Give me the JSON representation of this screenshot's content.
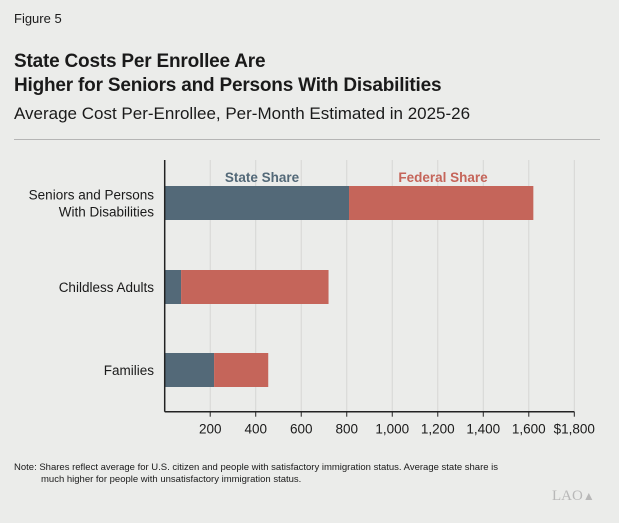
{
  "figure_label": "Figure 5",
  "title_lines": [
    "State Costs Per Enrollee Are",
    "Higher for Seniors and Persons With Disabilities"
  ],
  "subtitle": "Average Cost Per-Enrollee, Per-Month Estimated in 2025-26",
  "note_lines": [
    "Note: Shares reflect average for U.S. citizen and people with satisfactory immigration status. Average state share is",
    "much higher for people with unsatisfactory immigration status."
  ],
  "logo_text": "LAO",
  "chart_data": {
    "type": "bar",
    "orientation": "horizontal",
    "stacked": true,
    "categories": [
      [
        "Seniors and Persons",
        "With Disabilities"
      ],
      [
        "Childless Adults"
      ],
      [
        "Families"
      ]
    ],
    "series": [
      {
        "name": "State Share",
        "color": "#536978",
        "values": [
          810,
          72,
          217
        ]
      },
      {
        "name": "Federal Share",
        "color": "#c5655a",
        "values": [
          810,
          648,
          238
        ]
      }
    ],
    "xlim": [
      0,
      1800
    ],
    "ticks": [
      200,
      400,
      600,
      800,
      1000,
      1200,
      1400,
      1600,
      1800
    ],
    "tick_labels": [
      "200",
      "400",
      "600",
      "800",
      "1,000",
      "1,200",
      "1,400",
      "1,600",
      "$1,800"
    ],
    "grid": true,
    "legend": "top, above bars"
  }
}
